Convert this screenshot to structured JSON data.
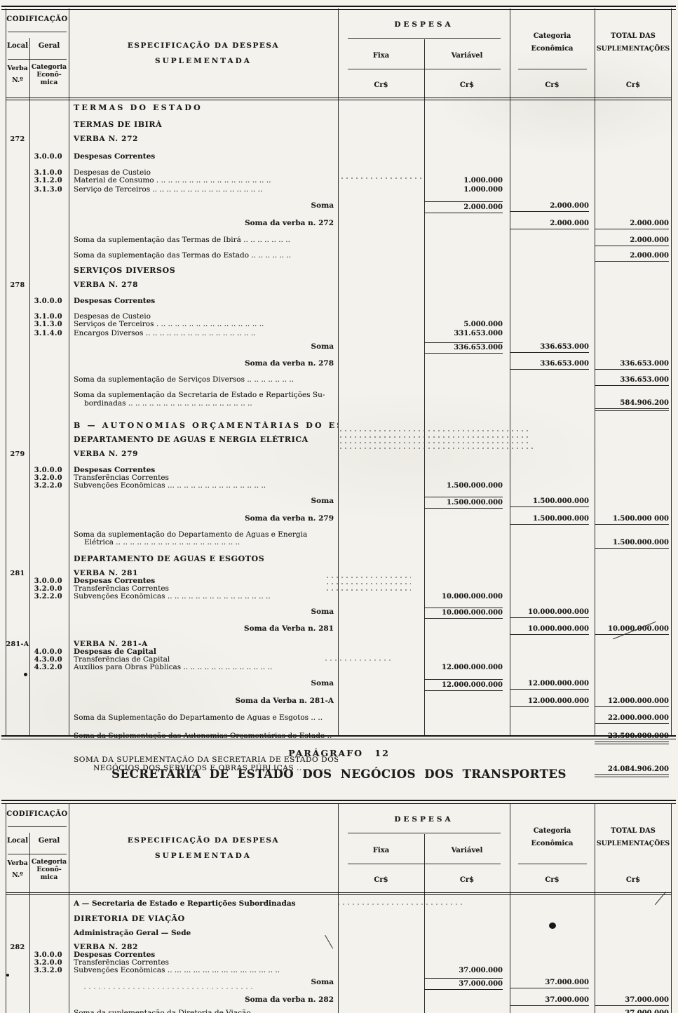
{
  "titles": {
    "paragrafo": "PARÁGRAFO 12",
    "secretaria": "SECRETARIA DE ESTADO DOS NEGÓCIOS DOS TRANSPORTES"
  },
  "header": {
    "codificacao": "CODIFICAÇÃO",
    "local": "Local",
    "geral": "Geral",
    "verba_line1": "Verba",
    "verba_line2": "N.º",
    "cat_line1": "Categoria",
    "cat_line2": "Econô-",
    "cat_line3": "mica",
    "espec_line1": "ESPECIFICAÇÃO DA DESPESA",
    "espec_line2": "SUPLEMENTADA",
    "despesa": "DESPESA",
    "fixa": "Fixa",
    "variavel": "Variável",
    "cr": "Cr$",
    "categoria_economica_line1": "Categoria",
    "categoria_economica_line2": "Econômica",
    "total_line1": "TOTAL DAS",
    "total_line2": "SUPLEMENTAÇÕES"
  },
  "table1": {
    "rows": [
      {
        "cls": "hs",
        "g": 3,
        "spec": "TERMAS DO ESTADO"
      },
      {
        "cls": "hb",
        "g": 10,
        "spec": "TERMAS DE IBIRÁ"
      },
      {
        "cls": "vb",
        "g": 8,
        "local": "272",
        "spec": "VERBA N. 272"
      },
      {
        "cls": "b",
        "g": 14,
        "code": "3.0.0.0",
        "spec": "Despesas Correntes"
      },
      {
        "cls": "n",
        "g": 12,
        "code": "3.1.0.0",
        "spec": "Despesas de Custeio"
      },
      {
        "cls": "n",
        "g": 0,
        "code": "3.1.2.0",
        "spec": "Material de Consumo . .. .. .. .. .. .. .. .. .. .. .. .. .. .. .. ..",
        "var": {
          "v": "1.000.000"
        }
      },
      {
        "cls": "n",
        "g": 0,
        "code": "3.1.3.0",
        "spec": "Serviço de Terceiros .. .. .. .. .. .. .. .. .. .. .. .. .. .. .. ..",
        "var": {
          "v": "1.000.000"
        }
      },
      {
        "cls": "sr",
        "g": 9,
        "spec": "Soma",
        "var": {
          "v": "2.000.000",
          "o": 1,
          "u": 1
        },
        "cat": {
          "v": "2.000.000",
          "u": 1
        }
      },
      {
        "cls": "sr",
        "g": 8,
        "spec": "Soma da verba n. 272",
        "cat": {
          "v": "2.000.000",
          "u": 1
        },
        "tot": {
          "v": "2.000.000",
          "u": 1
        }
      },
      {
        "cls": "n",
        "g": 10,
        "spec": "Soma da suplementação das Termas de Ibirá .. .. .. .. .. .. ..",
        "tot": {
          "v": "2.000.000",
          "u": 1
        }
      },
      {
        "cls": "n",
        "g": 8,
        "spec": "Soma da suplementação das Termas do Estado .. .. .. .. .. ..",
        "tot": {
          "v": "2.000.000",
          "u": 1
        }
      },
      {
        "cls": "hb",
        "g": 6,
        "spec": "SERVIÇOS DIVERSOS"
      },
      {
        "cls": "vb",
        "g": 8,
        "local": "278",
        "spec": "VERBA N. 278"
      },
      {
        "cls": "b",
        "g": 12,
        "code": "3.0.0.0",
        "spec": "Despesas Correntes"
      },
      {
        "cls": "n",
        "g": 11,
        "code": "3.1.0.0",
        "spec": "Despesas de Custeio"
      },
      {
        "cls": "n",
        "g": 0,
        "code": "3.1.3.0",
        "spec": "Serviços de Terceiros . .. .. .. .. .. .. .. .. .. .. .. .. .. .. ..",
        "var": {
          "v": "5.000.000"
        }
      },
      {
        "cls": "n",
        "g": 0,
        "code": "3.1.4.0",
        "spec": "Encargos Diversos .. .. .. .. .. .. .. .. .. .. .. .. .. .. .. ..",
        "var": {
          "v": "331.653.000"
        }
      },
      {
        "cls": "sr",
        "g": 5,
        "spec": "Soma",
        "var": {
          "v": "336.653.000",
          "o": 1,
          "u": 1
        },
        "cat": {
          "v": "336.653.000",
          "u": 1
        }
      },
      {
        "cls": "sr",
        "g": 8,
        "spec": "Soma da verba n. 278",
        "cat": {
          "v": "336.653.000",
          "u": 1
        },
        "tot": {
          "v": "336.653.000",
          "u": 1
        }
      },
      {
        "cls": "n",
        "g": 9,
        "spec": "Soma da suplementação de Serviços Diversos .. .. .. .. .. .. ..",
        "tot": {
          "v": "336.653.000",
          "u": 1
        }
      },
      {
        "cls": "n",
        "g": 8,
        "spec": "Soma da suplementação da Secretaria de Estado e Repartições Su-",
        "spec2": "bordinadas .. .. .. .. .. .. .. .. .. .. .. .. .. .. .. .. .. ..",
        "tot": {
          "v": "584.906.200",
          "uu": 1
        }
      },
      {
        "cls": "hs",
        "g": 14,
        "spec": "B — AUTONOMIAS ORÇAMENTÁRIAS DO ESTADO"
      },
      {
        "cls": "hb",
        "g": 6,
        "spec": "DEPARTAMENTO  DE  AGUAS E NERGIA ELÉTRICA"
      },
      {
        "cls": "vb",
        "g": 8,
        "local": "279",
        "spec": "VERBA N. 279"
      },
      {
        "cls": "b",
        "g": 12,
        "code": "3.0.0.0",
        "spec": "Despesas Correntes"
      },
      {
        "cls": "n",
        "g": 0,
        "code": "3.2.0.0",
        "spec": "Transferências Correntes"
      },
      {
        "cls": "n",
        "g": 0,
        "code": "3.2.2.0",
        "spec": "Subvenções Econômicas ... .. .. .. .. .. .. .. .. .. .. .. .. ..",
        "var": {
          "v": "1.500.000.000"
        }
      },
      {
        "cls": "sr",
        "g": 8,
        "spec": "Soma",
        "var": {
          "v": "1.500.000.000",
          "o": 1,
          "u": 1
        },
        "cat": {
          "v": "1.500.000.000",
          "u": 1
        }
      },
      {
        "cls": "sr",
        "g": 8,
        "spec": "Soma da verba n. 279",
        "cat": {
          "v": "1.500.000.000",
          "u": 1
        },
        "tot": {
          "v": "1.500.000 000",
          "u": 1
        }
      },
      {
        "cls": "n",
        "g": 9,
        "spec": "Soma da suplementação do Departamento de Águas e Energia",
        "spec2": "Elétrica .. .. .. .. .. .. .. .. .. .. .. .. .. .. .. .. .. ..",
        "tot": {
          "v": "1.500.000.000",
          "u": 1
        }
      },
      {
        "cls": "hb",
        "g": 8,
        "spec": "DEPARTAMENTO DE AGUAS E ESGOTOS"
      },
      {
        "cls": "vb",
        "g": 8,
        "local": "281",
        "spec": "VERBA N. 281"
      },
      {
        "cls": "b",
        "g": 0,
        "code": "3.0.0.0",
        "spec": "Despesas Correntes"
      },
      {
        "cls": "n",
        "g": 0,
        "code": "3.2.0.0",
        "spec": "Transferências Correntes"
      },
      {
        "cls": "n",
        "g": 0,
        "code": "3.2.2.0",
        "spec": "Subvenções Econômicas .. .. .. .. .. .. .. .. .. .. .. .. .. .. ..",
        "var": {
          "v": "10.000.000.000"
        }
      },
      {
        "cls": "sr",
        "g": 8,
        "spec": "Soma",
        "var": {
          "v": "10.000.000.000",
          "o": 1,
          "u": 1
        },
        "cat": {
          "v": "10.000.000.000",
          "u": 1
        }
      },
      {
        "cls": "sr",
        "g": 8,
        "spec": "Soma da Verba n. 281",
        "cat": {
          "v": "10.000.000.000",
          "u": 1
        },
        "tot": {
          "v": "10.000.000.000",
          "u": 1
        }
      },
      {
        "cls": "vb",
        "g": 8,
        "local": "281-A",
        "spec": "VERBA N. 281-A"
      },
      {
        "cls": "b",
        "g": 0,
        "code": "4.0.0.0",
        "spec": "Despesas de Capital"
      },
      {
        "cls": "n",
        "g": 0,
        "code": "4.3.0.0",
        "spec": "Transferências de Capital"
      },
      {
        "cls": "n",
        "g": 0,
        "code": "4.3.2.0",
        "spec": "Auxílios para Obras Públicas .. .. .. .. .. .. .. .. .. .. .. .. ..",
        "var": {
          "v": "12.000.000.000"
        }
      },
      {
        "cls": "sr",
        "g": 9,
        "spec": "Soma",
        "var": {
          "v": "12.000.000.000",
          "o": 1,
          "u": 1
        },
        "cat": {
          "v": "12.000.000.000",
          "u": 1
        }
      },
      {
        "cls": "sr",
        "g": 8,
        "spec": "Soma da Verba n. 281-A",
        "cat": {
          "v": "12.000.000.000",
          "u": 1
        },
        "tot": {
          "v": "12.000.000.000",
          "u": 1
        }
      },
      {
        "cls": "n",
        "g": 10,
        "spec": "Soma da Suplementação do Departamento de Águas e Esgotos .. ..",
        "tot": {
          "v": "22.000.000.000",
          "u": 1
        }
      },
      {
        "cls": "n",
        "g": 12,
        "spec": "Soma da Suplementação das Autonomias Orçamentárias do Estado ..",
        "tot": {
          "v": "23.500.000.000",
          "uu": 1
        }
      },
      {
        "cls": "caps2",
        "g": 16,
        "spec": "SOMA DA SUPLEMENTAÇÃO DA SECRETARIA DE ESTADO DOS",
        "spec2": "NEGÓCIOS DOS SERVIÇOS E OBRAS PÚBLICAS .. .. .. ..",
        "tot": {
          "v": "24.084.906.200",
          "uu": 1
        }
      }
    ]
  },
  "table2": {
    "rows": [
      {
        "cls": "b",
        "g": 6,
        "spec": "A — Secretaria de Estado e Repartições Subordinadas"
      },
      {
        "cls": "hb",
        "g": 9,
        "spec": "DIRETORIA DE VIAÇÃO"
      },
      {
        "cls": "b",
        "g": 8,
        "spec": "Administração Geral — Sede"
      },
      {
        "cls": "vb",
        "g": 9,
        "local": "282",
        "spec": "VERBA N. 282"
      },
      {
        "cls": "b",
        "g": 0,
        "code": "3.0.0.0",
        "spec": "Despesas Correntes"
      },
      {
        "cls": "n",
        "g": 0,
        "code": "3.2.0.0",
        "spec": "Transferências Correntes"
      },
      {
        "cls": "n",
        "g": 0,
        "code": "3.3.2.0",
        "spec": "Subvenções Econômicas .. ... ... ... ... ... ... ... ... ... ... .. ..",
        "var": {
          "v": "37.000.000"
        }
      },
      {
        "cls": "sr",
        "g": 3,
        "spec": "Soma",
        "var": {
          "v": "37.000.000",
          "o": 1,
          "u": 1
        },
        "cat": {
          "v": "37.000.000",
          "u": 1
        }
      },
      {
        "cls": "sr",
        "g": 8,
        "spec": "Soma da verba n. 282",
        "cat": {
          "v": "37.000.000",
          "u": 1
        },
        "tot": {
          "v": "37.000.000",
          "u": 1
        }
      },
      {
        "cls": "n",
        "g": 5,
        "spec": "Soma da suplementação da Diretoria de Viação ... ... ... ... ...",
        "tot": {
          "v": "37.000.000",
          "u": 1
        }
      }
    ]
  }
}
